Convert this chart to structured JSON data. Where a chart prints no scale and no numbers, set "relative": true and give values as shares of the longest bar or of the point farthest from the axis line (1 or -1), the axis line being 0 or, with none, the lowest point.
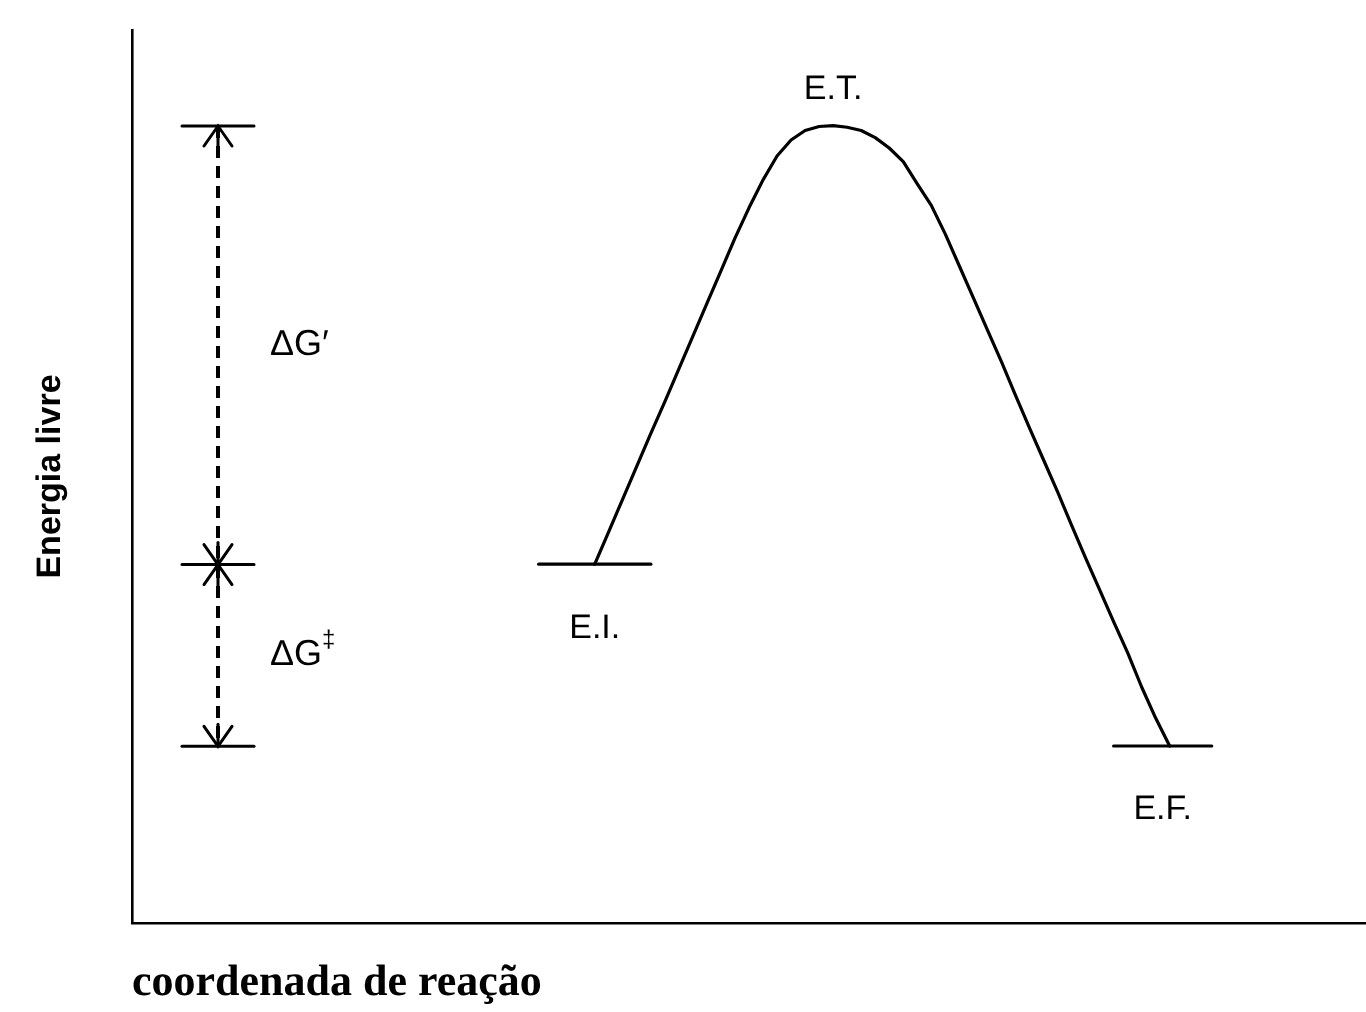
{
  "chart_data": {
    "type": "line",
    "xlabel": "coordenada de reação",
    "ylabel": "Energia livre",
    "relative": true,
    "legend": false,
    "grid": false,
    "tick_labels": false,
    "marker": "none",
    "line_style": "solid",
    "categories": [
      null,
      null,
      null,
      null,
      null,
      null,
      null,
      null,
      null,
      null,
      null,
      null,
      null,
      null,
      null,
      null,
      null,
      null,
      null,
      null,
      null,
      null,
      null,
      null,
      null,
      null,
      null,
      null,
      null,
      null,
      null,
      null,
      null,
      null,
      null,
      null,
      null,
      null,
      null,
      null,
      null,
      null,
      null,
      null,
      null,
      null,
      null,
      null,
      null,
      null,
      null,
      null,
      null,
      null,
      null,
      null,
      null,
      null,
      null,
      null,
      null,
      null,
      null,
      null,
      null,
      null,
      null,
      null,
      null,
      null,
      null,
      null,
      null,
      null,
      null,
      null,
      null,
      null,
      null,
      null,
      null,
      null,
      null,
      null,
      null,
      null,
      null,
      null,
      null
    ],
    "series": [
      {
        "name": "E.T.",
        "color": "#000000",
        "values": [
          null,
          null,
          null,
          null,
          null,
          null,
          null,
          null,
          null,
          null,
          null,
          null,
          null,
          null,
          null,
          null,
          null,
          null,
          null,
          null,
          null,
          null,
          null,
          null,
          null,
          null,
          null,
          null,
          null,
          null,
          null,
          null,
          null,
          0.45,
          0.491,
          0.532,
          0.573,
          0.614,
          0.654,
          0.695,
          0.736,
          0.777,
          0.818,
          0.859,
          0.897,
          0.932,
          0.962,
          0.982,
          0.994,
          0.999,
          1,
          0.998,
          0.994,
          0.985,
          0.972,
          0.955,
          0.927,
          0.9,
          0.864,
          0.824,
          0.784,
          0.744,
          0.704,
          0.662,
          0.621,
          0.581,
          0.541,
          0.499,
          0.458,
          0.418,
          0.378,
          0.339,
          0.296,
          0.257,
          0.222,
          null,
          null,
          null,
          null,
          null,
          null,
          null,
          null,
          null,
          null,
          null,
          null,
          null,
          null
        ]
      },
      {
        "name": "E.I.",
        "color": "#000000",
        "values": [
          null,
          null,
          null,
          null,
          null,
          null,
          null,
          null,
          null,
          null,
          null,
          null,
          null,
          null,
          null,
          null,
          null,
          null,
          null,
          null,
          null,
          null,
          null,
          null,
          null,
          null,
          null,
          null,
          null,
          0.45,
          0.45,
          0.45,
          0.45,
          0.45,
          0.45,
          0.45,
          0.45,
          0.45,
          null,
          null,
          null,
          null,
          null,
          null,
          null,
          null,
          null,
          null,
          null,
          null,
          null,
          null,
          null,
          null,
          null,
          null,
          null,
          null,
          null,
          null,
          null,
          null,
          null,
          null,
          null,
          null,
          null,
          null,
          null,
          null,
          null,
          null,
          null,
          null,
          null,
          null,
          null,
          null,
          null,
          null,
          null,
          null,
          null,
          null,
          null,
          null,
          null,
          null,
          null
        ]
      },
      {
        "name": "E.F.",
        "color": "#000000",
        "values": [
          null,
          null,
          null,
          null,
          null,
          null,
          null,
          null,
          null,
          null,
          null,
          null,
          null,
          null,
          null,
          null,
          null,
          null,
          null,
          null,
          null,
          null,
          null,
          null,
          null,
          null,
          null,
          null,
          null,
          null,
          null,
          null,
          null,
          null,
          null,
          null,
          null,
          null,
          null,
          null,
          null,
          null,
          null,
          null,
          null,
          null,
          null,
          null,
          null,
          null,
          null,
          null,
          null,
          null,
          null,
          null,
          null,
          null,
          null,
          null,
          null,
          null,
          null,
          null,
          null,
          null,
          null,
          null,
          null,
          null,
          0.222,
          0.222,
          0.222,
          0.222,
          0.222,
          0.222,
          0.222,
          0.222,
          null,
          null,
          null,
          null,
          null,
          null,
          null,
          null,
          null,
          null,
          null
        ]
      }
    ],
    "annotations": [
      "ΔG′",
      "ΔG$^{‡}$"
    ]
  }
}
